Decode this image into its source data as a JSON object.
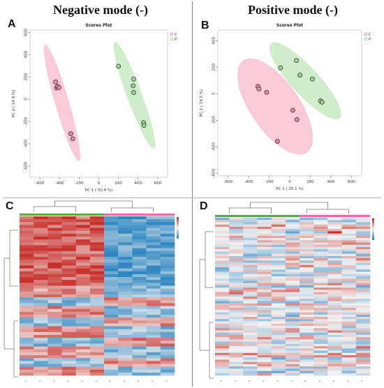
{
  "headers": {
    "left": "Negative mode (-)",
    "right": "Positive mode (-)"
  },
  "panel_labels": {
    "a": "A",
    "b": "B",
    "c": "C",
    "d": "D"
  },
  "colors": {
    "group_c": "#f4a0b8",
    "group_p": "#a8dca0",
    "heat_high": "#c8302a",
    "heat_low": "#2f86c0",
    "heat_mid": "#f2f2f2"
  },
  "chart_data": [
    {
      "type": "scatter",
      "title": "Scores Plot",
      "xlabel": "PC 1 ( 50.4 %)",
      "ylabel": "PC 2 ( 14.9 %)",
      "xlim": [
        -700,
        700
      ],
      "ylim": [
        -700,
        620
      ],
      "xticks": [
        "-600",
        "-400",
        "-200",
        "0",
        "200",
        "400",
        "600"
      ],
      "yticks": [
        "-600",
        "-400",
        "-200",
        "0",
        "200",
        "400",
        "600"
      ],
      "legend": [
        "C",
        "P"
      ],
      "legend_position": "top-right",
      "series": [
        {
          "name": "C",
          "points": [
            [
              -440,
              155
            ],
            [
              -430,
              100
            ],
            [
              -420,
              115
            ],
            [
              -405,
              105
            ],
            [
              -285,
              -310
            ],
            [
              -265,
              -355
            ]
          ]
        },
        {
          "name": "P",
          "points": [
            [
              200,
              295
            ],
            [
              355,
              180
            ],
            [
              350,
              120
            ],
            [
              355,
              60
            ],
            [
              455,
              -210
            ],
            [
              460,
              -235
            ]
          ]
        }
      ]
    },
    {
      "type": "scatter",
      "title": "Scores Plot",
      "xlabel": "PC 1 ( 25.1 %)",
      "ylabel": "PC 2 ( 14.5 %)",
      "xlim": [
        -700,
        700
      ],
      "ylim": [
        -620,
        480
      ],
      "xticks": [
        "-600",
        "-400",
        "-200",
        "0",
        "200",
        "400",
        "600"
      ],
      "yticks": [
        "-600",
        "-400",
        "-200",
        "0",
        "200",
        "400"
      ],
      "legend": [
        "C",
        "P"
      ],
      "legend_position": "top-right",
      "series": [
        {
          "name": "C",
          "points": [
            [
              -310,
              55
            ],
            [
              -300,
              35
            ],
            [
              -225,
              10
            ],
            [
              -120,
              -360
            ],
            [
              30,
              -125
            ],
            [
              70,
              -195
            ]
          ]
        },
        {
          "name": "P",
          "points": [
            [
              -90,
              195
            ],
            [
              65,
              250
            ],
            [
              100,
              140
            ],
            [
              220,
              110
            ],
            [
              300,
              -55
            ],
            [
              315,
              -65
            ]
          ]
        }
      ]
    },
    {
      "type": "heatmap",
      "columns": 11,
      "rows": 55
    },
    {
      "type": "heatmap",
      "columns": 11,
      "rows": 70
    }
  ]
}
